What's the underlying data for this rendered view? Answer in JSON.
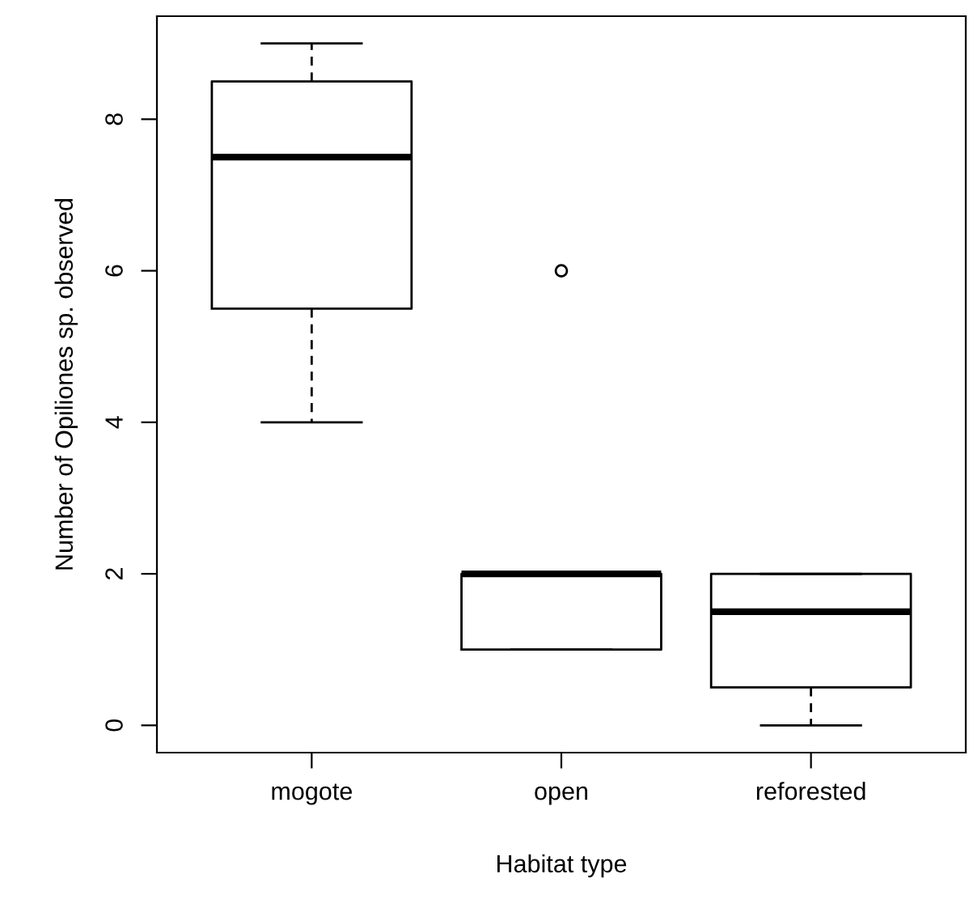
{
  "chart_data": {
    "type": "box",
    "xlabel": "Habitat type",
    "ylabel": "Number of Opiliones sp. observed",
    "categories": [
      "mogote",
      "open",
      "reforested"
    ],
    "boxes": [
      {
        "low": 4,
        "q1": 5.5,
        "median": 7.5,
        "q3": 8.5,
        "high": 9
      },
      {
        "low": 1,
        "q1": 1,
        "median": 2,
        "q3": 2,
        "high": 2,
        "outliers": [
          6
        ]
      },
      {
        "low": 0,
        "q1": 0.5,
        "median": 1.5,
        "q3": 2,
        "high": 2
      }
    ],
    "ylim": [
      -0.36,
      9.36
    ],
    "yticks": [
      0,
      2,
      4,
      6,
      8
    ],
    "grid": false
  }
}
